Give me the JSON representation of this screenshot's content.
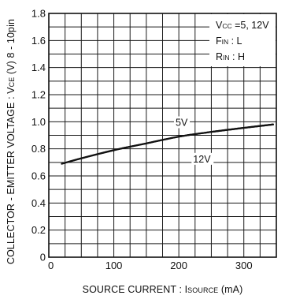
{
  "chart_data": {
    "type": "line",
    "xlabel": {
      "prefix": "SOURCE  CURRENT : I",
      "subscript": "SOURCE",
      "unit": "  (mA)"
    },
    "ylabel": {
      "prefix": "COLLECTOR - EMITTER VOLTAGE : V",
      "subscript": "CE",
      "suffix": "  (V)  8 - 10pin"
    },
    "xlim": [
      0,
      350
    ],
    "ylim": [
      0,
      1.8
    ],
    "x_ticks": [
      {
        "value": 0,
        "label": "0"
      },
      {
        "value": 100,
        "label": "100"
      },
      {
        "value": 200,
        "label": "200"
      },
      {
        "value": 300,
        "label": "300"
      }
    ],
    "y_ticks": [
      {
        "value": 0,
        "label": "0"
      },
      {
        "value": 0.2,
        "label": "0.2"
      },
      {
        "value": 0.4,
        "label": "0.4"
      },
      {
        "value": 0.6,
        "label": "0.6"
      },
      {
        "value": 0.8,
        "label": "0.8"
      },
      {
        "value": 1.0,
        "label": "1.0"
      },
      {
        "value": 1.2,
        "label": "1.2"
      },
      {
        "value": 1.4,
        "label": "1.4"
      },
      {
        "value": 1.6,
        "label": "1.6"
      },
      {
        "value": 1.8,
        "label": "1.8"
      }
    ],
    "grid": true,
    "grid_minor_x_step": 25,
    "grid_minor_y_step": 0.1,
    "conditions": [
      {
        "main": "V",
        "sub": "CC",
        "rest": " =5,  12V"
      },
      {
        "main": "F",
        "sub": "IN",
        "rest": " : L"
      },
      {
        "main": "R",
        "sub": "IN",
        "rest": " : H"
      }
    ],
    "series": [
      {
        "name": "5V",
        "x": [
          20,
          50,
          100,
          150,
          200,
          250,
          300,
          345
        ],
        "y": [
          0.69,
          0.73,
          0.79,
          0.84,
          0.89,
          0.925,
          0.955,
          0.98
        ]
      },
      {
        "name": "12V",
        "x": [
          20,
          50,
          100,
          150,
          200,
          250,
          300,
          345
        ],
        "y": [
          0.69,
          0.73,
          0.79,
          0.84,
          0.89,
          0.925,
          0.955,
          0.98
        ]
      }
    ],
    "annotations": [
      {
        "text": "5V",
        "x": 195,
        "y": 0.97
      },
      {
        "text": "12V",
        "x": 222,
        "y": 0.7
      }
    ]
  }
}
